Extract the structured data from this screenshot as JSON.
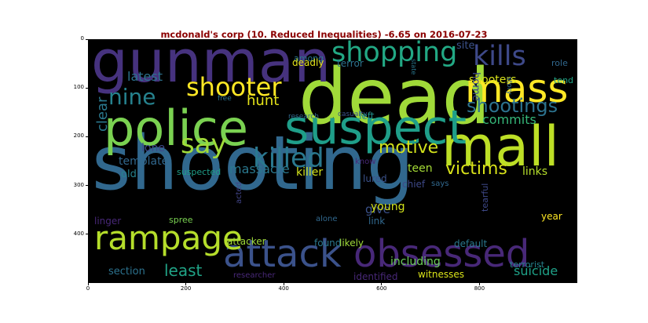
{
  "figure": {
    "title": "mcdonald's corp (10. Reduced Inequalities) -6.65 on 2016-07-23",
    "title_color": "#8b0000",
    "background": "#ffffff",
    "plot_background": "#000000"
  },
  "axes": {
    "xlim": [
      0,
      1000
    ],
    "ylim": [
      0,
      500
    ],
    "x_ticks": [
      "0",
      "200",
      "400",
      "600",
      "800"
    ],
    "y_ticks": [
      "0",
      "100",
      "200",
      "300",
      "400"
    ]
  },
  "words": [
    {
      "text": "shooting",
      "color": "#31688e"
    },
    {
      "text": "dead",
      "color": "#a0da39"
    },
    {
      "text": "gunman",
      "color": "#46327e"
    },
    {
      "text": "police",
      "color": "#7ad151"
    },
    {
      "text": "mall",
      "color": "#bddf26"
    },
    {
      "text": "suspect",
      "color": "#1f9e89"
    },
    {
      "text": "mass",
      "color": "#fde725"
    },
    {
      "text": "attack",
      "color": "#3b528b"
    },
    {
      "text": "obsessed",
      "color": "#482878"
    },
    {
      "text": "rampage",
      "color": "#b5de2b"
    },
    {
      "text": "say",
      "color": "#a0da39"
    },
    {
      "text": "killed",
      "color": "#2a788e"
    },
    {
      "text": "shopping",
      "color": "#22a884"
    },
    {
      "text": "kills",
      "color": "#3e4989"
    },
    {
      "text": "shooter",
      "color": "#fde725"
    },
    {
      "text": "nine",
      "color": "#26828e"
    },
    {
      "text": "shootings",
      "color": "#2c728e"
    },
    {
      "text": "victims",
      "color": "#d8e219"
    },
    {
      "text": "motive",
      "color": "#d2e21b"
    },
    {
      "text": "least",
      "color": "#20a386"
    },
    {
      "text": "hunt",
      "color": "#e5e419"
    },
    {
      "text": "massacre",
      "color": "#2a788e"
    },
    {
      "text": "latest",
      "color": "#2c728e"
    },
    {
      "text": "clear",
      "color": "#2a788e"
    },
    {
      "text": "give",
      "color": "#3b528b"
    },
    {
      "text": "shooters",
      "color": "#d8e219"
    },
    {
      "text": "commits",
      "color": "#35b779"
    },
    {
      "text": "suicide",
      "color": "#1fa188"
    },
    {
      "text": "killer",
      "color": "#d2e21b"
    },
    {
      "text": "teen",
      "color": "#a5db36"
    },
    {
      "text": "links",
      "color": "#b5de2b"
    },
    {
      "text": "including",
      "color": "#6ccd5a"
    },
    {
      "text": "lone",
      "color": "#3e4989"
    },
    {
      "text": "template",
      "color": "#31688e"
    },
    {
      "text": "section",
      "color": "#2c728e"
    },
    {
      "text": "home",
      "color": "#3e4989"
    },
    {
      "text": "site",
      "color": "#3b528b"
    },
    {
      "text": "terror",
      "color": "#2c728e"
    },
    {
      "text": "among",
      "color": "#2a788e"
    },
    {
      "text": "deadly",
      "color": "#e5e419"
    },
    {
      "text": "role",
      "color": "#31688e"
    },
    {
      "text": "tend",
      "color": "#20a386"
    },
    {
      "text": "story",
      "color": "#31688e"
    },
    {
      "text": "state",
      "color": "#2a788e"
    },
    {
      "text": "free",
      "color": "#2c728e"
    },
    {
      "text": "research",
      "color": "#31688e"
    },
    {
      "text": "casualty",
      "color": "#3b528b"
    },
    {
      "text": "left",
      "color": "#21918c"
    },
    {
      "text": "old",
      "color": "#26828e"
    },
    {
      "text": "suspected",
      "color": "#1f9e89"
    },
    {
      "text": "know",
      "color": "#482878"
    },
    {
      "text": "young",
      "color": "#d2e21b"
    },
    {
      "text": "lured",
      "color": "#3b528b"
    },
    {
      "text": "chief",
      "color": "#3e4989"
    },
    {
      "text": "says",
      "color": "#31688e"
    },
    {
      "text": "link",
      "color": "#31688e"
    },
    {
      "text": "linger",
      "color": "#482878"
    },
    {
      "text": "acted",
      "color": "#414487"
    },
    {
      "text": "spree",
      "color": "#7ad151"
    },
    {
      "text": "alone",
      "color": "#31688e"
    },
    {
      "text": "tearful",
      "color": "#3e4989"
    },
    {
      "text": "year",
      "color": "#fde725"
    },
    {
      "text": "attacker",
      "color": "#a0da39"
    },
    {
      "text": "found",
      "color": "#2a788e"
    },
    {
      "text": "likely",
      "color": "#a0da39"
    },
    {
      "text": "default",
      "color": "#2a788e"
    },
    {
      "text": "terrorist",
      "color": "#26828e"
    },
    {
      "text": "identified",
      "color": "#482878"
    },
    {
      "text": "witnesses",
      "color": "#d8e219"
    },
    {
      "text": "researcher",
      "color": "#482878"
    }
  ]
}
